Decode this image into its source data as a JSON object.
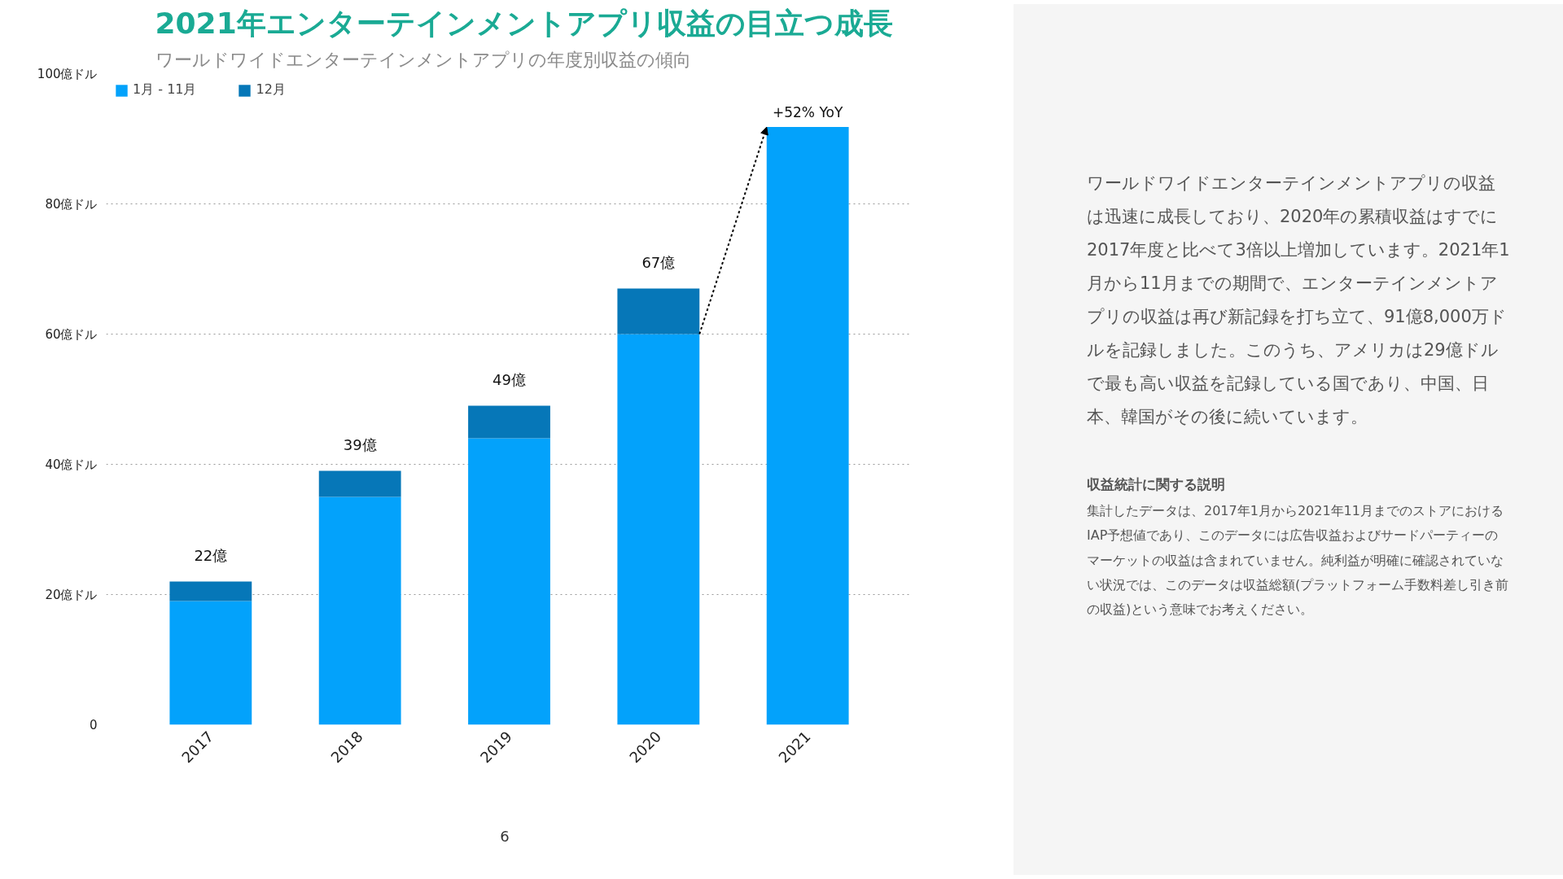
{
  "chart_data": {
    "type": "bar",
    "title": "2021年エンターテインメントアプリ収益の目立つ成長",
    "subtitle": "ワールドワイドエンターテインメントアプリの年度別収益の傾向",
    "categories": [
      "2017",
      "2018",
      "2019",
      "2020",
      "2021"
    ],
    "stacked": true,
    "series": [
      {
        "name": "1月 - 11月",
        "color": "#03a2fb",
        "values": [
          19,
          35,
          44,
          60,
          91.8
        ]
      },
      {
        "name": "12月",
        "color": "#0677b8",
        "values": [
          3,
          4,
          5,
          7,
          null
        ]
      }
    ],
    "totals": [
      "22億",
      "39億",
      "49億",
      "67億",
      null
    ],
    "ylim": [
      0,
      100
    ],
    "yticks": [
      0,
      {
        "value": 20,
        "label": "20億ドル"
      },
      {
        "value": 40,
        "label": "40億ドル"
      },
      {
        "value": 60,
        "label": "60億ドル"
      },
      {
        "value": 80,
        "label": "80億ドル"
      },
      {
        "value": 100,
        "label": "100億ドル"
      }
    ],
    "grid": "y",
    "legend": "top left",
    "annotations": [
      {
        "text": "+52% YoY",
        "x": "2021",
        "y": 91.8
      },
      "ワールドワイドエンターテインメントアプリの収益は迅速に成長しており、2020年の累積収益はすでに2017年度と比べて3倍以上増加しています。2021年1月から11月までの期間で、エンターテインメントアプリの収益は再び新記録を打ち立て、91億8,000万ドルを記録しました。このうち、アメリカは29億ドルで最も高い収益を記録している国であり、中国、日本、韓国がその後に続いています。",
      "収益統計に関する説明",
      "集計したデータは、2017年1月から2021年11月までのストアにおけるIAP予想値であり、このデータには広告収益およびサードパーティーのマーケットの収益は含まれていません。純利益が明確に確認されていない状況では、このデータは収益総額(プラットフォーム手数料差し引き前の収益)という意味でお考えください。",
      "6"
    ]
  }
}
